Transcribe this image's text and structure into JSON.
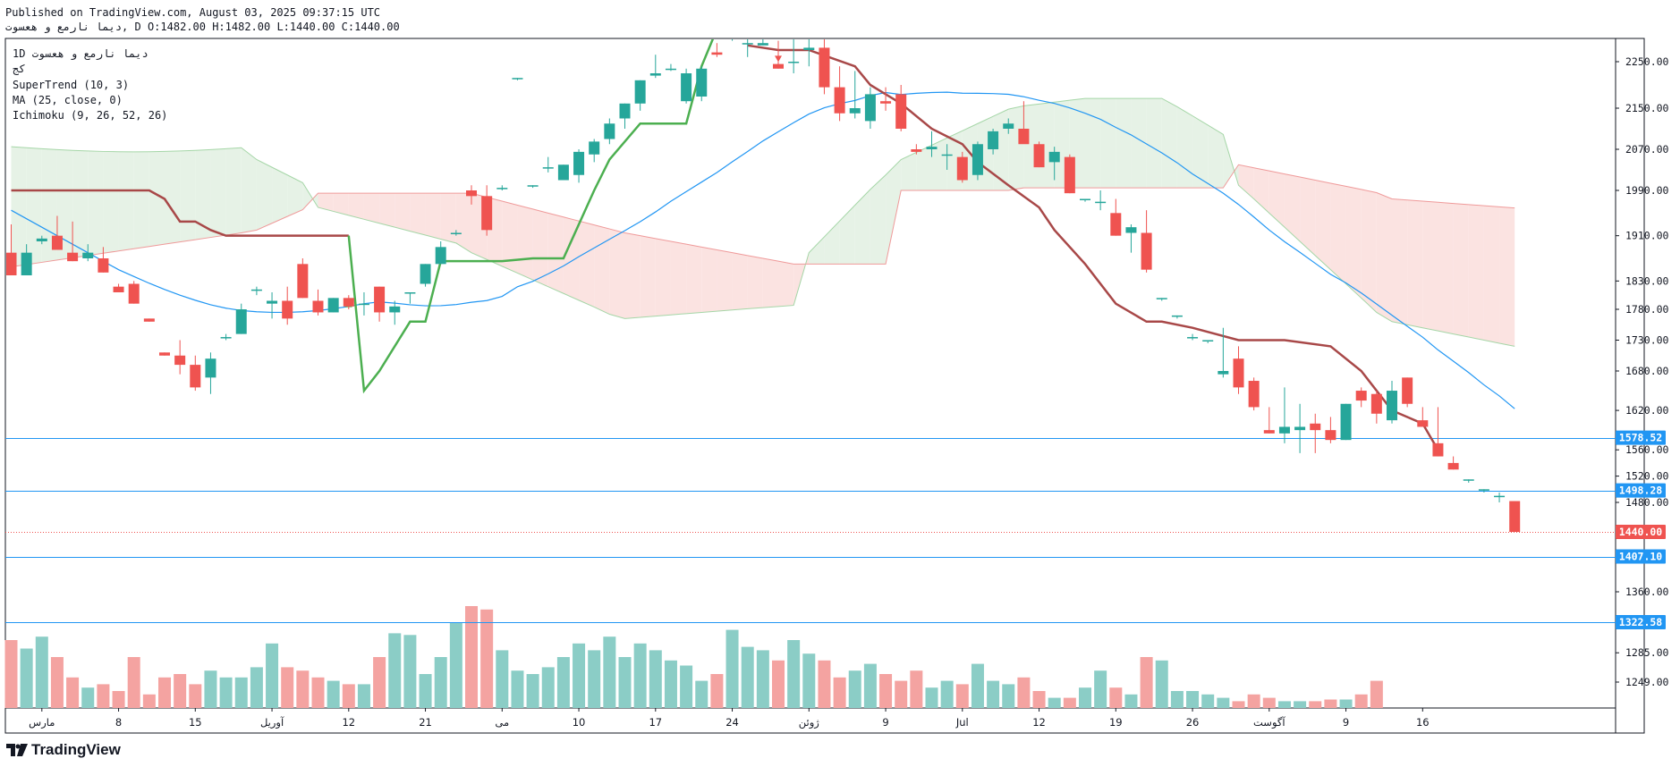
{
  "header": {
    "published": "Published on TradingView.com, August 03, 2025 09:37:15 UTC",
    "ohlc": "دیما نارمع و هعسوت, D O:1482.00 H:1482.00 L:1440.00 C:1440.00"
  },
  "legend": {
    "symbol": "دیما نارمع و هعسوت",
    "interval": "1D",
    "exchange": "کج",
    "supertrend": "SuperTrend (10, 3)",
    "ma": "MA (25, close, 0)",
    "ichimoku": "Ichimoku (9, 26, 52, 26)"
  },
  "footer": {
    "brand": "TradingView"
  },
  "colors": {
    "up": "#26a69a",
    "down": "#ef5350",
    "st_up": "#4caf50",
    "st_down": "#a84848",
    "ma": "#2196f3",
    "hline": "#2196f3",
    "cloud_green": "#e6f2e6",
    "cloud_red": "#fbe3e1"
  },
  "chart_data": {
    "type": "candlestick",
    "title": "دیما نارمع و هعسوت · 1D",
    "y_axis": {
      "ticks": [
        2250.0,
        2150.0,
        2070.0,
        1990.0,
        1910.0,
        1830.0,
        1780.0,
        1730.0,
        1680.0,
        1620.0,
        1560.0,
        1520.0,
        1480.0,
        1360.0,
        1285.0,
        1249.0
      ]
    },
    "x_axis": {
      "labels": [
        {
          "i": 2,
          "label": "مارس"
        },
        {
          "i": 7,
          "label": "8"
        },
        {
          "i": 12,
          "label": "15"
        },
        {
          "i": 17,
          "label": "آوریل"
        },
        {
          "i": 22,
          "label": "12"
        },
        {
          "i": 27,
          "label": "21"
        },
        {
          "i": 32,
          "label": "می"
        },
        {
          "i": 37,
          "label": "10"
        },
        {
          "i": 42,
          "label": "17"
        },
        {
          "i": 47,
          "label": "24"
        },
        {
          "i": 52,
          "label": "ژوئن"
        },
        {
          "i": 57,
          "label": "9"
        },
        {
          "i": 62,
          "label": "Jul"
        },
        {
          "i": 67,
          "label": "12"
        },
        {
          "i": 72,
          "label": "19"
        },
        {
          "i": 77,
          "label": "26"
        },
        {
          "i": 82,
          "label": "آگوست"
        },
        {
          "i": 87,
          "label": "9"
        },
        {
          "i": 92,
          "label": "16"
        }
      ]
    },
    "candles": [
      {
        "o": 1880,
        "h": 1930,
        "l": 1840,
        "c": 1840
      },
      {
        "o": 1840,
        "h": 1895,
        "l": 1840,
        "c": 1880
      },
      {
        "o": 1900,
        "h": 1910,
        "l": 1895,
        "c": 1905
      },
      {
        "o": 1910,
        "h": 1945,
        "l": 1885,
        "c": 1885
      },
      {
        "o": 1880,
        "h": 1935,
        "l": 1865,
        "c": 1865
      },
      {
        "o": 1870,
        "h": 1895,
        "l": 1865,
        "c": 1880
      },
      {
        "o": 1870,
        "h": 1890,
        "l": 1845,
        "c": 1845
      },
      {
        "o": 1820,
        "h": 1825,
        "l": 1810,
        "c": 1810
      },
      {
        "o": 1825,
        "h": 1830,
        "l": 1790,
        "c": 1790
      },
      {
        "o": 1765,
        "h": 1765,
        "l": 1760,
        "c": 1760
      },
      {
        "o": 1710,
        "h": 1710,
        "l": 1705,
        "c": 1705
      },
      {
        "o": 1705,
        "h": 1730,
        "l": 1675,
        "c": 1690
      },
      {
        "o": 1690,
        "h": 1705,
        "l": 1650,
        "c": 1655
      },
      {
        "o": 1670,
        "h": 1710,
        "l": 1645,
        "c": 1700
      },
      {
        "o": 1735,
        "h": 1740,
        "l": 1730,
        "c": 1735
      },
      {
        "o": 1740,
        "h": 1790,
        "l": 1740,
        "c": 1780
      },
      {
        "o": 1815,
        "h": 1820,
        "l": 1805,
        "c": 1815
      },
      {
        "o": 1790,
        "h": 1810,
        "l": 1765,
        "c": 1795
      },
      {
        "o": 1795,
        "h": 1820,
        "l": 1755,
        "c": 1765
      },
      {
        "o": 1860,
        "h": 1870,
        "l": 1800,
        "c": 1800
      },
      {
        "o": 1795,
        "h": 1815,
        "l": 1770,
        "c": 1775
      },
      {
        "o": 1775,
        "h": 1800,
        "l": 1775,
        "c": 1800
      },
      {
        "o": 1800,
        "h": 1805,
        "l": 1780,
        "c": 1785
      },
      {
        "o": 1790,
        "h": 1810,
        "l": 1770,
        "c": 1790
      },
      {
        "o": 1820,
        "h": 1820,
        "l": 1760,
        "c": 1775
      },
      {
        "o": 1775,
        "h": 1795,
        "l": 1755,
        "c": 1785
      },
      {
        "o": 1810,
        "h": 1810,
        "l": 1790,
        "c": 1810
      },
      {
        "o": 1825,
        "h": 1860,
        "l": 1820,
        "c": 1860
      },
      {
        "o": 1860,
        "h": 1900,
        "l": 1860,
        "c": 1890
      },
      {
        "o": 1915,
        "h": 1920,
        "l": 1910,
        "c": 1915
      },
      {
        "o": 1990,
        "h": 2000,
        "l": 1965,
        "c": 1980
      },
      {
        "o": 1980,
        "h": 2000,
        "l": 1910,
        "c": 1920
      },
      {
        "o": 1995,
        "h": 2000,
        "l": 1990,
        "c": 1995
      },
      {
        "o": 2215,
        "h": 2215,
        "l": 2210,
        "c": 2215
      },
      {
        "o": 2000,
        "h": 2000,
        "l": 1995,
        "c": 2000
      },
      {
        "o": 2035,
        "h": 2055,
        "l": 2025,
        "c": 2035
      },
      {
        "o": 2010,
        "h": 2040,
        "l": 2010,
        "c": 2040
      },
      {
        "o": 2020,
        "h": 2070,
        "l": 2005,
        "c": 2065
      },
      {
        "o": 2060,
        "h": 2090,
        "l": 2045,
        "c": 2085
      },
      {
        "o": 2090,
        "h": 2130,
        "l": 2080,
        "c": 2120
      },
      {
        "o": 2130,
        "h": 2160,
        "l": 2110,
        "c": 2160
      },
      {
        "o": 2160,
        "h": 2210,
        "l": 2145,
        "c": 2210
      },
      {
        "o": 2220,
        "h": 2265,
        "l": 2215,
        "c": 2225
      },
      {
        "o": 2235,
        "h": 2245,
        "l": 2230,
        "c": 2235
      },
      {
        "o": 2165,
        "h": 2235,
        "l": 2160,
        "c": 2225
      },
      {
        "o": 2175,
        "h": 2240,
        "l": 2165,
        "c": 2235
      },
      {
        "o": 2270,
        "h": 2290,
        "l": 2260,
        "c": 2265
      },
      {
        "o": 2300,
        "h": 2315,
        "l": 2295,
        "c": 2305
      },
      {
        "o": 2290,
        "h": 2320,
        "l": 2260,
        "c": 2290
      },
      {
        "o": 2285,
        "h": 2300,
        "l": 2285,
        "c": 2290
      },
      {
        "o": 2245,
        "h": 2295,
        "l": 2235,
        "c": 2235
      },
      {
        "o": 2250,
        "h": 2300,
        "l": 2225,
        "c": 2250
      },
      {
        "o": 2275,
        "h": 2305,
        "l": 2240,
        "c": 2280
      },
      {
        "o": 2280,
        "h": 2320,
        "l": 2180,
        "c": 2195
      },
      {
        "o": 2195,
        "h": 2240,
        "l": 2125,
        "c": 2140
      },
      {
        "o": 2140,
        "h": 2230,
        "l": 2130,
        "c": 2150
      },
      {
        "o": 2125,
        "h": 2195,
        "l": 2110,
        "c": 2180
      },
      {
        "o": 2165,
        "h": 2195,
        "l": 2145,
        "c": 2160
      },
      {
        "o": 2180,
        "h": 2200,
        "l": 2105,
        "c": 2110
      }
    ],
    "candles_b": [
      {
        "o": 2070,
        "h": 2080,
        "l": 2060,
        "c": 2065
      },
      {
        "o": 2070,
        "h": 2105,
        "l": 2055,
        "c": 2075
      },
      {
        "o": 2060,
        "h": 2080,
        "l": 2030,
        "c": 2060
      },
      {
        "o": 2055,
        "h": 2065,
        "l": 2005,
        "c": 2010
      },
      {
        "o": 2020,
        "h": 2085,
        "l": 2010,
        "c": 2080
      },
      {
        "o": 2070,
        "h": 2110,
        "l": 2060,
        "c": 2105
      },
      {
        "o": 2110,
        "h": 2130,
        "l": 2100,
        "c": 2120
      },
      {
        "o": 2110,
        "h": 2165,
        "l": 2085,
        "c": 2080
      },
      {
        "o": 2080,
        "h": 2085,
        "l": 2035,
        "c": 2035
      },
      {
        "o": 2045,
        "h": 2075,
        "l": 2010,
        "c": 2065
      },
      {
        "o": 2055,
        "h": 2060,
        "l": 1985,
        "c": 1985
      },
      {
        "o": 1975,
        "h": 1975,
        "l": 1970,
        "c": 1975
      },
      {
        "o": 1970,
        "h": 1990,
        "l": 1955,
        "c": 1970
      },
      {
        "o": 1950,
        "h": 1975,
        "l": 1910,
        "c": 1910
      },
      {
        "o": 1915,
        "h": 1930,
        "l": 1880,
        "c": 1925
      },
      {
        "o": 1915,
        "h": 1955,
        "l": 1845,
        "c": 1850
      },
      {
        "o": 1800,
        "h": 1800,
        "l": 1795,
        "c": 1800
      },
      {
        "o": 1770,
        "h": 1770,
        "l": 1765,
        "c": 1770
      },
      {
        "o": 1735,
        "h": 1740,
        "l": 1730,
        "c": 1735
      },
      {
        "o": 1730,
        "h": 1730,
        "l": 1725,
        "c": 1730
      },
      {
        "o": 1675,
        "h": 1750,
        "l": 1670,
        "c": 1680
      },
      {
        "o": 1700,
        "h": 1720,
        "l": 1645,
        "c": 1655
      },
      {
        "o": 1665,
        "h": 1670,
        "l": 1620,
        "c": 1625
      },
      {
        "o": 1590,
        "h": 1625,
        "l": 1585,
        "c": 1585
      },
      {
        "o": 1585,
        "h": 1655,
        "l": 1570,
        "c": 1595
      },
      {
        "o": 1590,
        "h": 1630,
        "l": 1555,
        "c": 1595
      },
      {
        "o": 1600,
        "h": 1615,
        "l": 1555,
        "c": 1590
      },
      {
        "o": 1590,
        "h": 1610,
        "l": 1570,
        "c": 1575
      },
      {
        "o": 1575,
        "h": 1630,
        "l": 1575,
        "c": 1630
      },
      {
        "o": 1650,
        "h": 1655,
        "l": 1625,
        "c": 1635
      },
      {
        "o": 1645,
        "h": 1650,
        "l": 1600,
        "c": 1615
      },
      {
        "o": 1605,
        "h": 1665,
        "l": 1600,
        "c": 1650
      },
      {
        "o": 1670,
        "h": 1670,
        "l": 1625,
        "c": 1630
      },
      {
        "o": 1605,
        "h": 1625,
        "l": 1600,
        "c": 1595
      },
      {
        "o": 1570,
        "h": 1625,
        "l": 1550,
        "c": 1550
      },
      {
        "o": 1540,
        "h": 1550,
        "l": 1530,
        "c": 1530
      },
      {
        "o": 1515,
        "h": 1515,
        "l": 1510,
        "c": 1515
      },
      {
        "o": 1500,
        "h": 1500,
        "l": 1495,
        "c": 1500
      },
      {
        "o": 1490,
        "h": 1495,
        "l": 1480,
        "c": 1490
      },
      {
        "o": 1482,
        "h": 1482,
        "l": 1440,
        "c": 1440
      }
    ],
    "volume": [
      0.4,
      0.35,
      0.42,
      0.3,
      0.18,
      0.12,
      0.14,
      0.1,
      0.3,
      0.08,
      0.18,
      0.2,
      0.14,
      0.22,
      0.18,
      0.18,
      0.24,
      0.38,
      0.24,
      0.22,
      0.18,
      0.16,
      0.14,
      0.14,
      0.3,
      0.44,
      0.43,
      0.2,
      0.3,
      0.5,
      0.6,
      0.58,
      0.34,
      0.22,
      0.2,
      0.24,
      0.3,
      0.38,
      0.34,
      0.42,
      0.3,
      0.38,
      0.34,
      0.28,
      0.25,
      0.16,
      0.2,
      0.46,
      0.36,
      0.34,
      0.28,
      0.4,
      0.32,
      0.28,
      0.18,
      0.22,
      0.26,
      0.2,
      0.16,
      0.22,
      0.12,
      0.16,
      0.14,
      0.26,
      0.16,
      0.14,
      0.18,
      0.1,
      0.06,
      0.06,
      0.12,
      0.22,
      0.12,
      0.08,
      0.3,
      0.28,
      0.1,
      0.1,
      0.08,
      0.06,
      0.04,
      0.08,
      0.06,
      0.04,
      0.04,
      0.04,
      0.05,
      0.05,
      0.08,
      0.16
    ],
    "h_lines": [
      1578.52,
      1498.28,
      1407.1,
      1322.58
    ],
    "price_labels": [
      {
        "value": 1578.52,
        "text": "1578.52",
        "color": "#2196f3"
      },
      {
        "value": 1498.28,
        "text": "1498.28",
        "color": "#2196f3"
      },
      {
        "value": 1440.0,
        "text": "1440.00",
        "color": "#ef5350"
      },
      {
        "value": 1407.1,
        "text": "1407.10",
        "color": "#2196f3"
      },
      {
        "value": 1322.58,
        "text": "1322.58",
        "color": "#2196f3"
      }
    ],
    "last_price": 1440.0
  }
}
